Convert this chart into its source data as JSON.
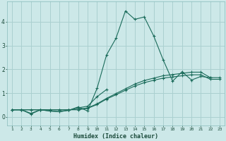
{
  "xlabel": "Humidex (Indice chaleur)",
  "bg_color": "#cce8e8",
  "grid_color": "#aad0d0",
  "line_color": "#1a6b5a",
  "x_ticks": [
    1,
    2,
    3,
    4,
    5,
    6,
    7,
    8,
    9,
    10,
    11,
    12,
    13,
    14,
    15,
    16,
    17,
    18,
    19,
    20,
    21,
    22,
    23
  ],
  "ylim": [
    -0.35,
    4.85
  ],
  "xlim": [
    0.5,
    23.5
  ],
  "series": [
    {
      "x": [
        1,
        2,
        3,
        4,
        5,
        6,
        7,
        8,
        9,
        10,
        11,
        12,
        13,
        14,
        15,
        16,
        17,
        18,
        19,
        20,
        21,
        22
      ],
      "y": [
        0.3,
        0.3,
        0.15,
        0.3,
        0.25,
        0.22,
        0.28,
        0.42,
        0.25,
        1.2,
        2.6,
        3.3,
        4.45,
        4.1,
        4.2,
        3.4,
        2.4,
        1.5,
        1.9,
        1.55,
        1.7,
        1.65
      ]
    },
    {
      "x": [
        1,
        2,
        3,
        4,
        5,
        6,
        7,
        8,
        9,
        10,
        11
      ],
      "y": [
        0.3,
        0.3,
        0.12,
        0.3,
        0.25,
        0.22,
        0.28,
        0.38,
        0.45,
        0.85,
        1.15
      ]
    },
    {
      "x": [
        1,
        2,
        3,
        4,
        5,
        6,
        7,
        8,
        9,
        10,
        11,
        12,
        13,
        14,
        15,
        16,
        17,
        18,
        19,
        20,
        21,
        22,
        23
      ],
      "y": [
        0.3,
        0.3,
        0.3,
        0.3,
        0.3,
        0.3,
        0.3,
        0.32,
        0.38,
        0.55,
        0.78,
        0.98,
        1.18,
        1.38,
        1.53,
        1.63,
        1.73,
        1.78,
        1.83,
        1.88,
        1.88,
        1.65,
        1.65
      ]
    },
    {
      "x": [
        1,
        2,
        3,
        4,
        5,
        6,
        7,
        8,
        9,
        10,
        11,
        12,
        13,
        14,
        15,
        16,
        17,
        18,
        19,
        20,
        21,
        22,
        23
      ],
      "y": [
        0.3,
        0.3,
        0.3,
        0.3,
        0.3,
        0.3,
        0.3,
        0.3,
        0.36,
        0.52,
        0.75,
        0.93,
        1.12,
        1.3,
        1.44,
        1.54,
        1.63,
        1.68,
        1.73,
        1.77,
        1.77,
        1.58,
        1.58
      ]
    }
  ]
}
